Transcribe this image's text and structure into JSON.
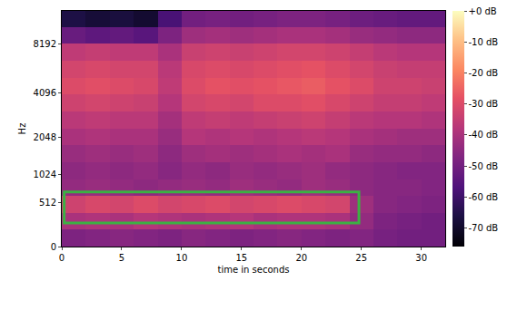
{
  "chart_data": {
    "type": "heatmap",
    "x_label": "time in seconds",
    "y_label": "Hz",
    "x": [
      1,
      3,
      5,
      7,
      9,
      11,
      13,
      15,
      17,
      19,
      21,
      23,
      25,
      27,
      29,
      31
    ],
    "y": [
      78,
      263,
      490,
      771,
      1119,
      1548,
      2079,
      2736,
      3547,
      4551,
      5792,
      7327,
      9221,
      11565
    ],
    "cells": [
      [
        -48,
        -47,
        -46,
        -47,
        -48,
        -46,
        -47,
        -48,
        -47,
        -46,
        -47,
        -48,
        -47,
        -49,
        -50,
        -50
      ],
      [
        -40,
        -39,
        -40,
        -38,
        -39,
        -40,
        -39,
        -38,
        -40,
        -39,
        -39,
        -40,
        -44,
        -48,
        -49,
        -50
      ],
      [
        -33,
        -31,
        -32,
        -30,
        -32,
        -31,
        -30,
        -32,
        -31,
        -30,
        -31,
        -32,
        -42,
        -46,
        -47,
        -48
      ],
      [
        -44,
        -43,
        -44,
        -45,
        -44,
        -43,
        -44,
        -42,
        -43,
        -44,
        -42,
        -43,
        -45,
        -46,
        -46,
        -47
      ],
      [
        -45,
        -44,
        -45,
        -44,
        -46,
        -44,
        -45,
        -43,
        -44,
        -43,
        -42,
        -44,
        -45,
        -46,
        -47,
        -47
      ],
      [
        -43,
        -42,
        -43,
        -42,
        -45,
        -42,
        -41,
        -42,
        -41,
        -40,
        -41,
        -40,
        -43,
        -44,
        -44,
        -45
      ],
      [
        -40,
        -39,
        -40,
        -40,
        -43,
        -38,
        -39,
        -38,
        -39,
        -38,
        -37,
        -38,
        -40,
        -41,
        -42,
        -42
      ],
      [
        -37,
        -36,
        -37,
        -37,
        -41,
        -36,
        -35,
        -36,
        -35,
        -34,
        -33,
        -35,
        -37,
        -38,
        -38,
        -39
      ],
      [
        -33,
        -32,
        -33,
        -34,
        -38,
        -32,
        -31,
        -32,
        -30,
        -30,
        -29,
        -31,
        -33,
        -35,
        -35,
        -36
      ],
      [
        -30,
        -29,
        -30,
        -31,
        -36,
        -30,
        -28,
        -29,
        -28,
        -27,
        -26,
        -28,
        -30,
        -33,
        -33,
        -34
      ],
      [
        -32,
        -31,
        -32,
        -32,
        -37,
        -31,
        -30,
        -31,
        -30,
        -29,
        -28,
        -30,
        -32,
        -34,
        -35,
        -35
      ],
      [
        -36,
        -35,
        -36,
        -36,
        -40,
        -34,
        -33,
        -34,
        -33,
        -32,
        -32,
        -33,
        -35,
        -37,
        -38,
        -38
      ],
      [
        -52,
        -54,
        -53,
        -55,
        -48,
        -42,
        -41,
        -42,
        -41,
        -40,
        -40,
        -41,
        -43,
        -44,
        -45,
        -45
      ],
      [
        -66,
        -68,
        -67,
        -69,
        -58,
        -50,
        -49,
        -50,
        -49,
        -48,
        -48,
        -49,
        -51,
        -52,
        -53,
        -53
      ]
    ],
    "xlim": [
      0,
      32
    ],
    "xticks": [
      0,
      5,
      10,
      15,
      20,
      25,
      30
    ],
    "ylim": [
      0,
      12800
    ],
    "yticks": [
      0,
      512,
      1024,
      2048,
      4096,
      8192
    ],
    "colorbar": {
      "range": [
        -76,
        0
      ],
      "ticks": [
        {
          "value": 0,
          "label": "+0 dB"
        },
        {
          "value": -10,
          "label": "-10 dB"
        },
        {
          "value": -20,
          "label": "-20 dB"
        },
        {
          "value": -30,
          "label": "-30 dB"
        },
        {
          "value": -40,
          "label": "-40 dB"
        },
        {
          "value": -50,
          "label": "-50 dB"
        },
        {
          "value": -60,
          "label": "-60 dB"
        },
        {
          "value": -70,
          "label": "-70 dB"
        }
      ]
    },
    "box": {
      "x0": 0.2,
      "x1": 24.8,
      "y0": 240,
      "y1": 690,
      "color": "#3cb043"
    }
  }
}
